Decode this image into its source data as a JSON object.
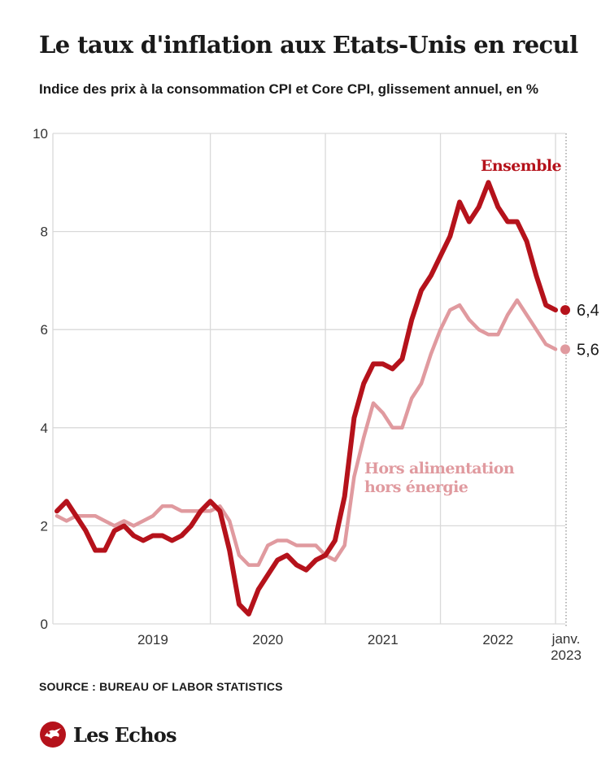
{
  "header": {
    "title": "Le taux d'inflation aux Etats-Unis en recul",
    "subtitle": "Indice des prix à la consommation CPI et Core CPI, glissement annuel, en %"
  },
  "footer": {
    "source": "SOURCE : BUREAU OF LABOR STATISTICS",
    "brand": "Les Echos"
  },
  "colors": {
    "headline": "#b5121b",
    "core": "#e09a9f",
    "grid": "#d9d9d9",
    "text": "#1a1a1a"
  },
  "chart_data": {
    "type": "line",
    "title": "Le taux d'inflation aux Etats-Unis en recul",
    "subtitle": "Indice des prix à la consommation CPI et Core CPI, glissement annuel, en %",
    "x": [
      "2018-09",
      "2018-10",
      "2018-11",
      "2018-12",
      "2019-01",
      "2019-02",
      "2019-03",
      "2019-04",
      "2019-05",
      "2019-06",
      "2019-07",
      "2019-08",
      "2019-09",
      "2019-10",
      "2019-11",
      "2019-12",
      "2020-01",
      "2020-02",
      "2020-03",
      "2020-04",
      "2020-05",
      "2020-06",
      "2020-07",
      "2020-08",
      "2020-09",
      "2020-10",
      "2020-11",
      "2020-12",
      "2021-01",
      "2021-02",
      "2021-03",
      "2021-04",
      "2021-05",
      "2021-06",
      "2021-07",
      "2021-08",
      "2021-09",
      "2021-10",
      "2021-11",
      "2021-12",
      "2022-01",
      "2022-02",
      "2022-03",
      "2022-04",
      "2022-05",
      "2022-06",
      "2022-07",
      "2022-08",
      "2022-09",
      "2022-10",
      "2022-11",
      "2022-12",
      "2023-01"
    ],
    "series": [
      {
        "name": "Ensemble",
        "color": "#b5121b",
        "values": [
          2.3,
          2.5,
          2.2,
          1.9,
          1.5,
          1.5,
          1.9,
          2.0,
          1.8,
          1.7,
          1.8,
          1.8,
          1.7,
          1.8,
          2.0,
          2.3,
          2.5,
          2.3,
          1.5,
          0.4,
          0.2,
          0.7,
          1.0,
          1.3,
          1.4,
          1.2,
          1.1,
          1.3,
          1.4,
          1.7,
          2.6,
          4.2,
          4.9,
          5.3,
          5.3,
          5.2,
          5.4,
          6.2,
          6.8,
          7.1,
          7.5,
          7.9,
          8.6,
          8.2,
          8.5,
          9.0,
          8.5,
          8.2,
          8.2,
          7.8,
          7.1,
          6.5,
          6.4
        ]
      },
      {
        "name": "Hors alimentation hors énergie",
        "color": "#e09a9f",
        "values": [
          2.2,
          2.1,
          2.2,
          2.2,
          2.2,
          2.1,
          2.0,
          2.1,
          2.0,
          2.1,
          2.2,
          2.4,
          2.4,
          2.3,
          2.3,
          2.3,
          2.3,
          2.4,
          2.1,
          1.4,
          1.2,
          1.2,
          1.6,
          1.7,
          1.7,
          1.6,
          1.6,
          1.6,
          1.4,
          1.3,
          1.6,
          3.0,
          3.8,
          4.5,
          4.3,
          4.0,
          4.0,
          4.6,
          4.9,
          5.5,
          6.0,
          6.4,
          6.5,
          6.2,
          6.0,
          5.9,
          5.9,
          6.3,
          6.6,
          6.3,
          6.0,
          5.7,
          5.6
        ]
      }
    ],
    "series_labels": [
      "Ensemble",
      "Hors alimentation",
      "hors énergie"
    ],
    "end_labels": [
      "6,4",
      "5,6"
    ],
    "ylim": [
      0,
      10
    ],
    "yticks": [
      "0",
      "2",
      "4",
      "6",
      "8",
      "10"
    ],
    "xticks": [
      "2019",
      "2020",
      "2021",
      "2022"
    ],
    "last_label": [
      "janv.",
      "2023"
    ],
    "grid": true
  }
}
